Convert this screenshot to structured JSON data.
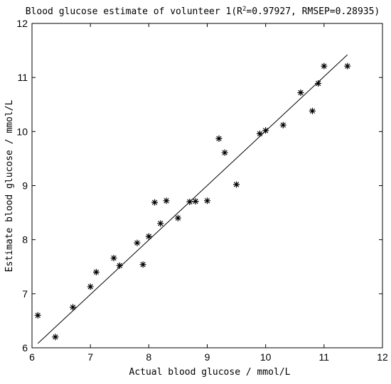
{
  "chart_data": {
    "type": "scatter",
    "title": {
      "prefix": "Blood glucose estimate of volunteer 1(R",
      "superscript": "2",
      "suffix": "=0.97927, RMSEP=0.28935)"
    },
    "xlabel": "Actual blood glucose / mmol/L",
    "ylabel": "Estimate blood glucose / mmol/L",
    "xlim": [
      6,
      12
    ],
    "ylim": [
      6,
      12
    ],
    "xticks": [
      6,
      7,
      8,
      9,
      10,
      11,
      12
    ],
    "yticks": [
      6,
      7,
      8,
      9,
      10,
      11,
      12
    ],
    "grid": false,
    "marker": "*",
    "points": [
      {
        "x": 6.1,
        "y": 6.6
      },
      {
        "x": 6.4,
        "y": 6.2
      },
      {
        "x": 6.7,
        "y": 6.75
      },
      {
        "x": 7.0,
        "y": 7.13
      },
      {
        "x": 7.1,
        "y": 7.4
      },
      {
        "x": 7.4,
        "y": 7.66
      },
      {
        "x": 7.5,
        "y": 7.52
      },
      {
        "x": 7.8,
        "y": 7.94
      },
      {
        "x": 7.9,
        "y": 7.54
      },
      {
        "x": 8.0,
        "y": 8.06
      },
      {
        "x": 8.1,
        "y": 8.69
      },
      {
        "x": 8.2,
        "y": 8.3
      },
      {
        "x": 8.3,
        "y": 8.72
      },
      {
        "x": 8.5,
        "y": 8.4
      },
      {
        "x": 8.7,
        "y": 8.7
      },
      {
        "x": 8.8,
        "y": 8.71
      },
      {
        "x": 9.0,
        "y": 8.72
      },
      {
        "x": 9.2,
        "y": 9.87
      },
      {
        "x": 9.3,
        "y": 9.61
      },
      {
        "x": 9.5,
        "y": 9.02
      },
      {
        "x": 9.9,
        "y": 9.96
      },
      {
        "x": 10.0,
        "y": 10.02
      },
      {
        "x": 10.3,
        "y": 10.12
      },
      {
        "x": 10.6,
        "y": 10.72
      },
      {
        "x": 10.8,
        "y": 10.38
      },
      {
        "x": 10.9,
        "y": 10.89
      },
      {
        "x": 11.0,
        "y": 11.21
      },
      {
        "x": 11.4,
        "y": 11.21
      }
    ],
    "fit_line": {
      "x": [
        6.1,
        11.4
      ],
      "y": [
        6.08,
        11.42
      ]
    }
  }
}
